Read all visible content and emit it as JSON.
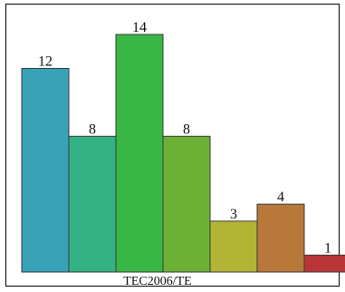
{
  "chart_data": {
    "type": "bar",
    "categories": [
      "",
      "",
      "",
      "",
      "",
      "",
      ""
    ],
    "values": [
      12,
      8,
      14,
      8,
      3,
      4,
      1
    ],
    "colors": [
      "#37a2b8",
      "#33b383",
      "#38b744",
      "#6cb136",
      "#b2b435",
      "#b7783a",
      "#b93537"
    ],
    "xlabel": "TEC2006/TE",
    "ylabel": "",
    "ylim": [
      0,
      14
    ],
    "grid": false
  }
}
